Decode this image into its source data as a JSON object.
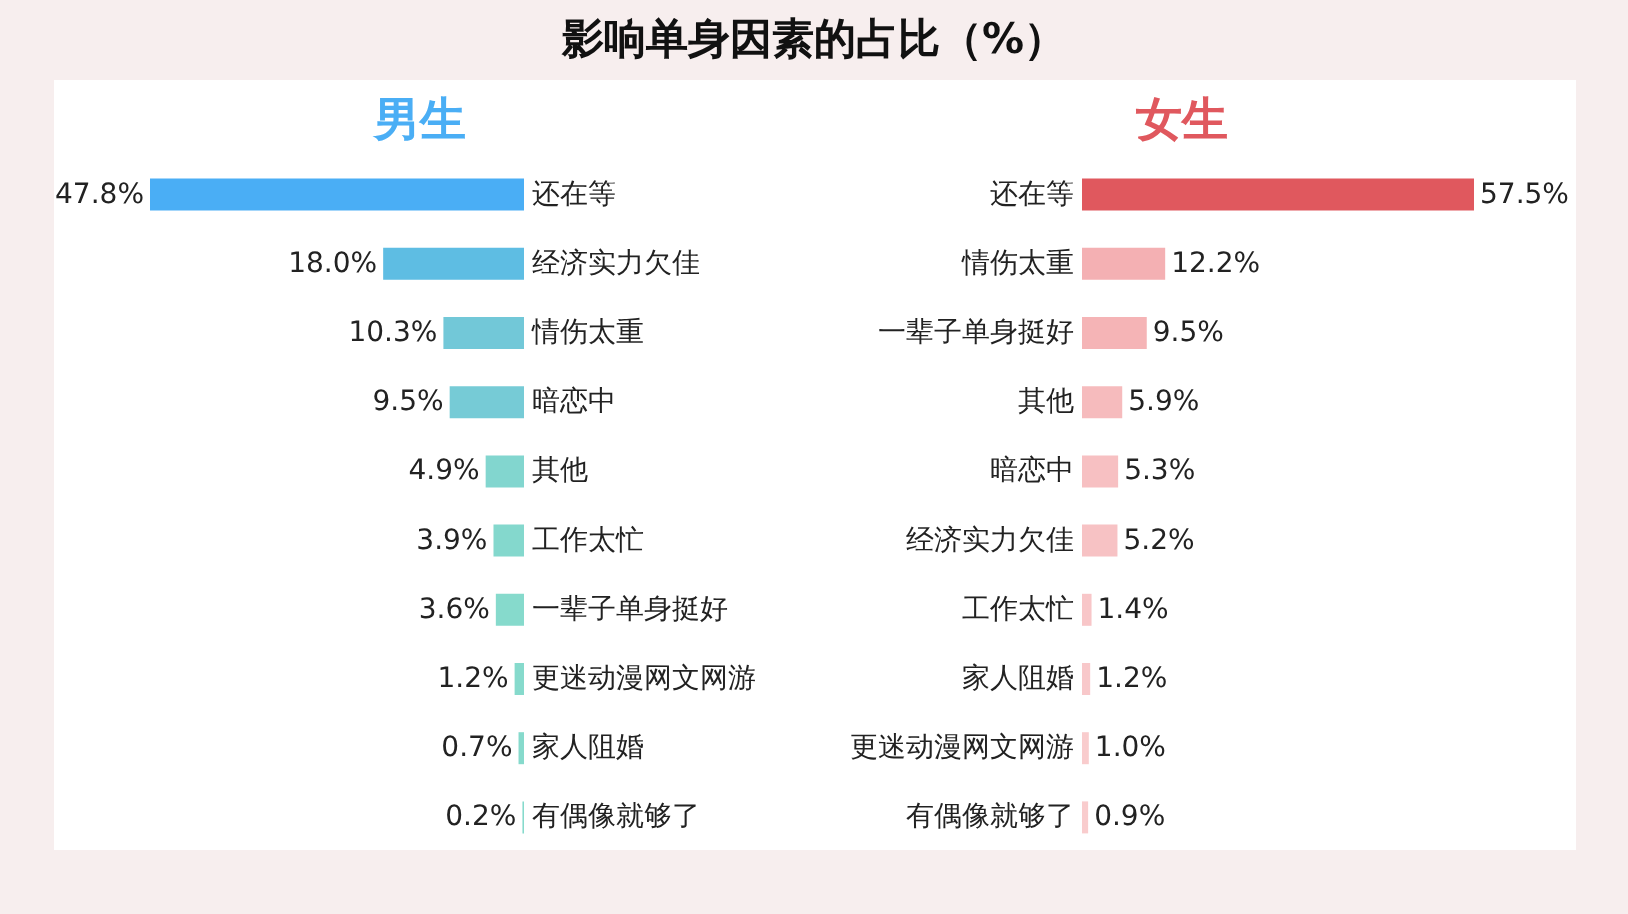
{
  "chart_data": [
    {
      "type": "bar",
      "orientation": "horizontal",
      "title": "影响单身因素的占比（%）",
      "subtitle": "男生",
      "categories": [
        "还在等",
        "经济实力欠佳",
        "情伤太重",
        "暗恋中",
        "其他",
        "工作太忙",
        "一辈子单身挺好",
        "更迷动漫网文网游",
        "家人阻婚",
        "有偶像就够了"
      ],
      "values": [
        47.8,
        18.0,
        10.3,
        9.5,
        4.9,
        3.9,
        3.6,
        1.2,
        0.7,
        0.2
      ],
      "value_labels": [
        "47.8%",
        "18.0%",
        "10.3%",
        "9.5%",
        "4.9%",
        "3.9%",
        "3.6%",
        "1.2%",
        "0.7%",
        "0.2%"
      ],
      "colors": [
        "#4aaef5",
        "#5ebde3",
        "#72c8d8",
        "#76cbd6",
        "#82d6cf",
        "#84d8cd",
        "#86dacc",
        "#86dacc",
        "#86dacc",
        "#86dacc"
      ]
    },
    {
      "type": "bar",
      "orientation": "horizontal",
      "subtitle": "女生",
      "categories": [
        "还在等",
        "情伤太重",
        "一辈子单身挺好",
        "其他",
        "暗恋中",
        "经济实力欠佳",
        "工作太忙",
        "家人阻婚",
        "更迷动漫网文网游",
        "有偶像就够了"
      ],
      "values": [
        57.5,
        12.2,
        9.5,
        5.9,
        5.3,
        5.2,
        1.4,
        1.2,
        1.0,
        0.9
      ],
      "value_labels": [
        "57.5%",
        "12.2%",
        "9.5%",
        "5.9%",
        "5.3%",
        "5.2%",
        "1.4%",
        "1.2%",
        "1.0%",
        "0.9%"
      ],
      "colors": [
        "#e0585e",
        "#f4b0b3",
        "#f5b4b6",
        "#f6bbbd",
        "#f7c0c2",
        "#f7c2c4",
        "#f8c6c8",
        "#f8c8ca",
        "#f9cccd",
        "#f9cccd"
      ]
    }
  ]
}
